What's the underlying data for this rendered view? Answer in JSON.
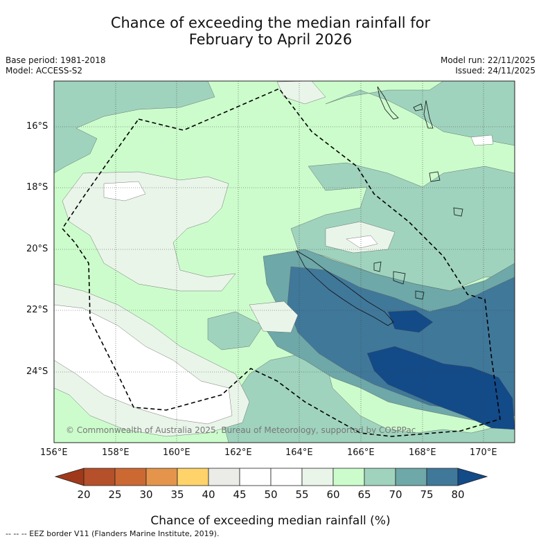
{
  "title": {
    "line1": "Chance of exceeding the median rainfall for",
    "line2": "February to April 2026"
  },
  "meta": {
    "base_period": "Base period: 1981-2018",
    "model": "Model: ACCESS-S2",
    "model_run": "Model run: 22/11/2025",
    "issued": "Issued: 24/11/2025"
  },
  "axes": {
    "lat_labels": [
      "16°S",
      "18°S",
      "20°S",
      "22°S",
      "24°S"
    ],
    "lon_labels": [
      "156°E",
      "158°E",
      "160°E",
      "162°E",
      "164°E",
      "166°E",
      "168°E",
      "170°E"
    ]
  },
  "copyright": "© Commonwealth of Australia 2025, Bureau of Meteorology, supported by COSPPac",
  "colorbar": {
    "label": "Chance of exceeding median rainfall (%)",
    "ticks": [
      "20",
      "25",
      "30",
      "35",
      "40",
      "45",
      "50",
      "55",
      "60",
      "65",
      "70",
      "75",
      "80"
    ],
    "colors": [
      "#a0381a",
      "#b5502a",
      "#cc6933",
      "#e4954b",
      "#ffd36a",
      "#ebebe7",
      "#ffffff",
      "#ffffff",
      "#eaf5ea",
      "#ccfccc",
      "#9fd3be",
      "#6ea8a8",
      "#40789a",
      "#134a88"
    ]
  },
  "footnote": "--  --  -- EEZ border V11 (Flanders Marine Institute, 2019)."
}
